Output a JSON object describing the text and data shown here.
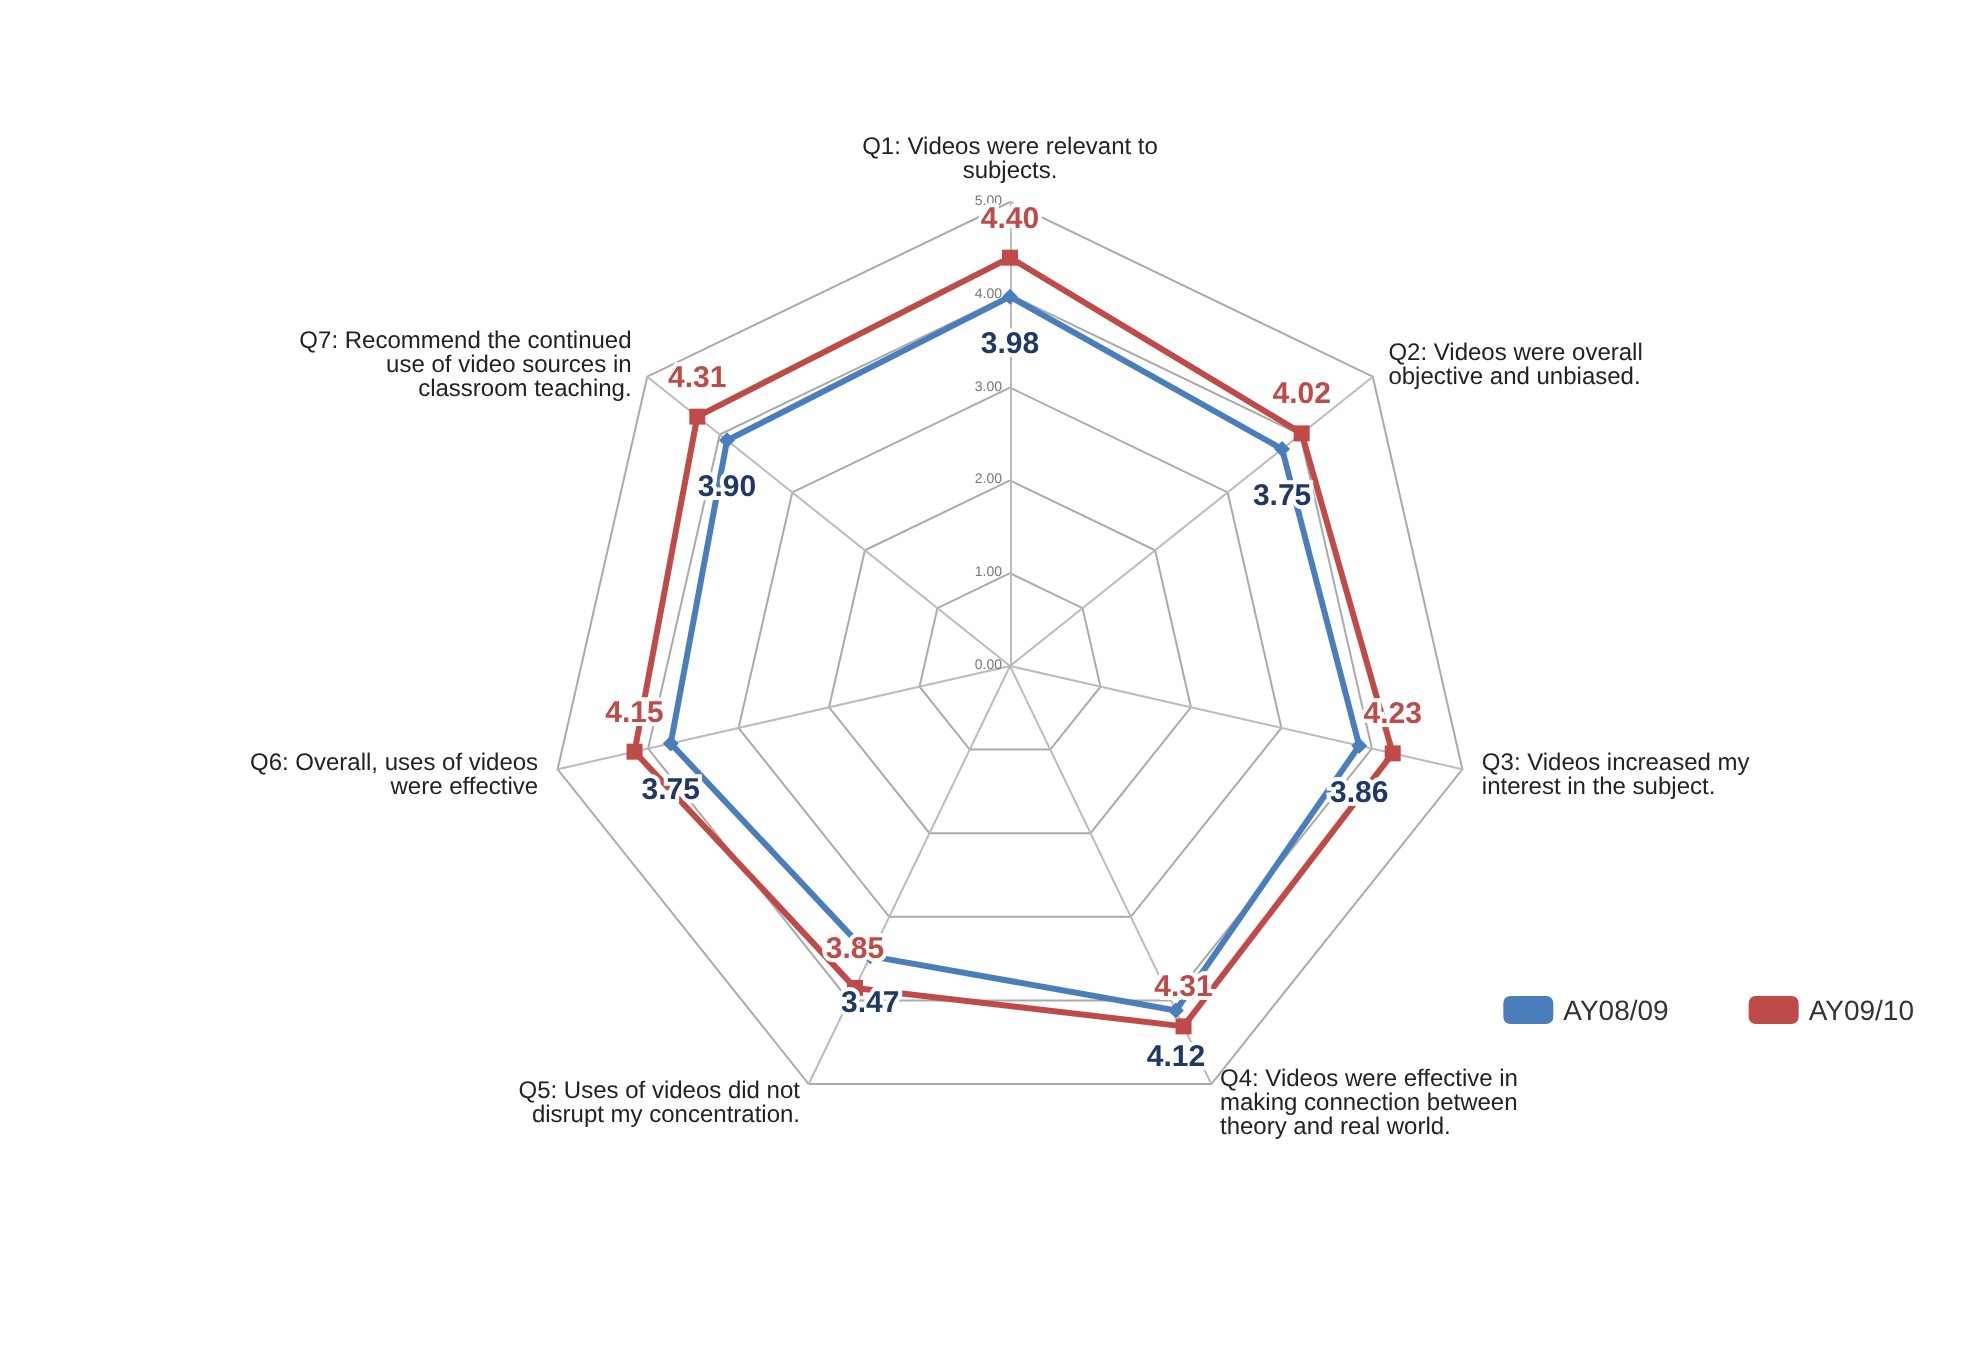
{
  "chart_data": {
    "type": "radar",
    "categories": [
      "Q1: Videos were relevant to subjects.",
      "Q2: Videos were overall objective and unbiased.",
      "Q3: Videos increased my interest in the subject.",
      "Q4: Videos were effective in making connection between theory and real world.",
      "Q5: Uses of videos did not disrupt my concentration.",
      "Q6: Overall, uses of videos were effective",
      "Q7: Recommend the continued use of video sources in classroom teaching."
    ],
    "series": [
      {
        "name": "AY08/09",
        "color": "#4a7ebb",
        "marker": "diamond",
        "values": [
          3.98,
          3.75,
          3.86,
          4.12,
          3.47,
          3.75,
          3.9
        ],
        "value_labels": [
          "3.98",
          "3.75",
          "3.86",
          "4.12",
          "3.47",
          "3.75",
          "3.90"
        ]
      },
      {
        "name": "AY09/10",
        "color": "#be4b48",
        "marker": "square",
        "values": [
          4.4,
          4.02,
          4.23,
          4.31,
          3.85,
          4.15,
          4.31
        ],
        "value_labels": [
          "4.40",
          "4.02",
          "4.23",
          "4.31",
          "3.85",
          "4.15",
          "4.31"
        ]
      }
    ],
    "ylim": [
      0,
      5
    ],
    "yticks": [
      {
        "value": 0,
        "label": "0.00"
      },
      {
        "value": 1,
        "label": "1.00"
      },
      {
        "value": 2,
        "label": "2.00"
      },
      {
        "value": 3,
        "label": "3.00"
      },
      {
        "value": 4,
        "label": "4.00"
      },
      {
        "value": 5,
        "label": "5.00"
      }
    ],
    "grid": true,
    "legend": "bottom right",
    "line_style": "solid"
  }
}
